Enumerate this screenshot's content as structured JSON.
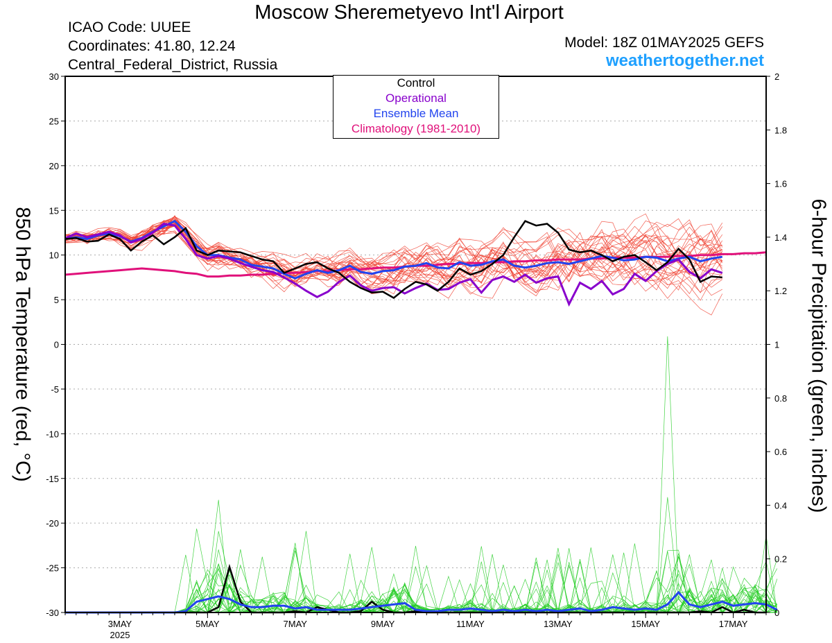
{
  "header": {
    "title": "Moscow Sheremetyevo Int'l Airport",
    "icao": "ICAO Code: UUEE",
    "coordinates": "Coordinates: 41.80, 12.24",
    "region": "Central_Federal_District, Russia",
    "model": "Model: 18Z 01MAY2025 GEFS",
    "site": "weathertogether.net"
  },
  "colors": {
    "control": "#000000",
    "operational": "#8800cc",
    "ensemble_mean": "#2244ee",
    "climatology": "#e0107a",
    "members_temp": "#f04030",
    "members_precip": "#22cc22"
  },
  "legend": {
    "control": "Control",
    "operational": "Operational",
    "ensemble_mean": "Ensemble Mean",
    "climatology": "Climatology (1981-2010)"
  },
  "axis_labels": {
    "left": "850 hPa Temperature (red, °C)",
    "right": "6-hour Precipitation (green, inches)"
  },
  "chart_data": {
    "type": "line",
    "x_unit": "6-hour steps from 18Z 01MAY2025",
    "x_range": [
      0,
      64
    ],
    "x_ticks": [
      {
        "step": 5,
        "label": "3MAY",
        "sub": "2025"
      },
      {
        "step": 13,
        "label": "5MAY",
        "sub": ""
      },
      {
        "step": 21,
        "label": "7MAY",
        "sub": ""
      },
      {
        "step": 29,
        "label": "9MAY",
        "sub": ""
      },
      {
        "step": 37,
        "label": "11MAY",
        "sub": ""
      },
      {
        "step": 45,
        "label": "13MAY",
        "sub": ""
      },
      {
        "step": 53,
        "label": "15MAY",
        "sub": ""
      },
      {
        "step": 61,
        "label": "17MAY",
        "sub": ""
      }
    ],
    "ylim_left": [
      -30,
      30
    ],
    "yticks_left": [
      30,
      25,
      20,
      15,
      10,
      5,
      0,
      -5,
      -10,
      -15,
      -20,
      -25,
      -30
    ],
    "ylim_right": [
      0,
      2
    ],
    "yticks_right": [
      "2",
      "1.8",
      "1.6",
      "1.4",
      "1.2",
      "1",
      "0.8",
      "0.6",
      "0.4",
      "0.2",
      "0"
    ],
    "grid": true,
    "legend_position": "top-center",
    "temperature": {
      "control": [
        11.8,
        11.9,
        11.5,
        11.6,
        12.3,
        11.8,
        10.5,
        11.5,
        12.2,
        11.2,
        12.0,
        13.0,
        10.5,
        10.0,
        10.5,
        10.4,
        10.3,
        9.9,
        9.5,
        9.3,
        8.0,
        8.5,
        9.0,
        9.2,
        8.5,
        8.0,
        7.0,
        6.3,
        5.8,
        5.9,
        5.2,
        6.2,
        7.0,
        6.7,
        6.0,
        7.0,
        8.5,
        7.8,
        8.2,
        9.0,
        10.0,
        12.0,
        13.8,
        13.3,
        13.5,
        12.5,
        10.6,
        10.3,
        10.5,
        10.0,
        9.3,
        9.8,
        10.0,
        9.2,
        8.3,
        9.2,
        10.7,
        9.5,
        7.0,
        7.6,
        7.5
      ],
      "operational": [
        11.9,
        12.4,
        12.0,
        12.3,
        12.6,
        12.2,
        11.4,
        11.8,
        12.5,
        13.5,
        13.3,
        11.8,
        10.0,
        9.6,
        9.9,
        9.6,
        9.1,
        8.7,
        8.3,
        8.1,
        7.5,
        6.8,
        6.0,
        5.3,
        5.9,
        7.0,
        7.7,
        6.6,
        6.0,
        6.3,
        6.4,
        5.7,
        6.3,
        6.8,
        6.1,
        6.2,
        6.9,
        7.3,
        5.8,
        7.2,
        7.6,
        7.0,
        7.8,
        6.9,
        7.4,
        7.6,
        4.5,
        6.9,
        6.2,
        7.1,
        5.6,
        6.2,
        7.9,
        7.1,
        8.2,
        9.0,
        9.5,
        8.1,
        7.4,
        8.4,
        8.0
      ],
      "ensemble_mean": [
        11.8,
        12.0,
        11.8,
        12.2,
        12.4,
        12.1,
        11.5,
        11.9,
        12.6,
        13.2,
        13.8,
        12.6,
        11.0,
        10.0,
        10.0,
        9.7,
        9.5,
        8.9,
        8.7,
        8.5,
        7.9,
        7.4,
        7.9,
        8.3,
        8.0,
        8.3,
        8.8,
        8.1,
        7.9,
        8.2,
        8.3,
        8.7,
        8.8,
        9.1,
        8.6,
        8.5,
        9.2,
        8.8,
        8.9,
        9.3,
        9.5,
        8.8,
        8.6,
        8.8,
        9.1,
        9.2,
        9.0,
        9.3,
        9.6,
        9.9,
        9.7,
        9.4,
        9.5,
        9.8,
        9.7,
        9.3,
        9.6,
        9.8,
        9.3,
        9.6,
        9.8
      ],
      "climatology": [
        7.8,
        7.9,
        8.0,
        8.1,
        8.2,
        8.3,
        8.4,
        8.5,
        8.4,
        8.3,
        8.2,
        8.0,
        7.9,
        7.6,
        7.6,
        7.7,
        7.7,
        7.8,
        7.8,
        7.9,
        8.0,
        8.0,
        8.1,
        8.2,
        8.2,
        8.3,
        8.4,
        8.4,
        8.5,
        8.6,
        8.6,
        8.7,
        8.8,
        8.8,
        8.9,
        9.0,
        9.0,
        9.1,
        9.1,
        9.2,
        9.2,
        9.3,
        9.3,
        9.4,
        9.4,
        9.5,
        9.5,
        9.5,
        9.6,
        9.6,
        9.7,
        9.7,
        9.7,
        9.8,
        9.8,
        9.8,
        9.9,
        9.9,
        10.0,
        10.0,
        10.1,
        10.1,
        10.2,
        10.2,
        10.3
      ]
    },
    "precipitation": {
      "control": [
        0,
        0,
        0,
        0,
        0,
        0,
        0,
        0,
        0,
        0,
        0,
        0,
        0,
        0,
        0.02,
        0.17,
        0.04,
        0,
        0,
        0,
        0,
        0.005,
        0,
        0.02,
        0.01,
        0,
        0,
        0.005,
        0.04,
        0.01,
        0,
        0,
        0.005,
        0,
        0,
        0,
        0,
        0,
        0,
        0,
        0,
        0,
        0,
        0,
        0,
        0,
        0,
        0,
        0,
        0,
        0,
        0,
        0,
        0,
        0,
        0,
        0,
        0,
        0.005,
        0,
        0.02,
        0,
        0.01,
        0,
        0
      ],
      "ensemble_mean": [
        0,
        0,
        0,
        0,
        0,
        0,
        0,
        0,
        0,
        0,
        0,
        0.005,
        0.04,
        0.05,
        0.06,
        0.05,
        0.03,
        0.02,
        0.02,
        0.025,
        0.025,
        0.015,
        0.02,
        0.01,
        0.01,
        0.01,
        0.01,
        0.015,
        0.02,
        0.025,
        0.03,
        0.035,
        0.01,
        0.005,
        0.005,
        0.01,
        0.01,
        0.015,
        0.01,
        0.005,
        0.01,
        0.005,
        0.01,
        0.005,
        0.01,
        0.005,
        0.01,
        0.015,
        0.005,
        0.01,
        0.02,
        0.015,
        0.01,
        0.015,
        0.01,
        0.03,
        0.075,
        0.03,
        0.02,
        0.03,
        0.04,
        0.025,
        0.03,
        0.035,
        0.03,
        0.01
      ]
    }
  }
}
